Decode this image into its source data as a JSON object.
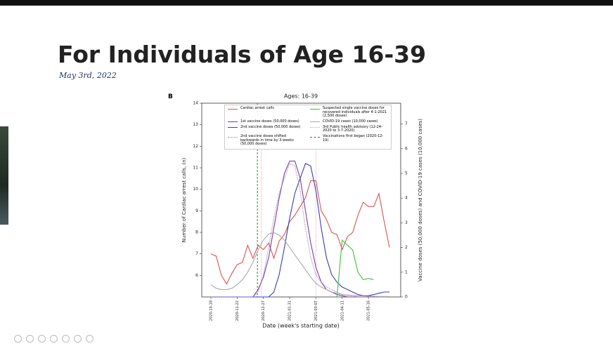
{
  "slide": {
    "title": "For Individuals of Age 16-39",
    "date": "May 3rd, 2022",
    "panel_label": "B"
  },
  "chart_data": {
    "type": "line",
    "title": "Ages: 16-39",
    "x_label": "Date (week's starting date)",
    "y_label": "Number of Cardiac arrest calls, (n)",
    "y2_label": "Vaccine doses (50,000 doses) and COVID-19 cases (10,000 cases)",
    "categories": [
      "2020-10-18",
      null,
      null,
      null,
      null,
      "2020-11-22",
      null,
      null,
      null,
      null,
      "2020-12-27",
      null,
      null,
      null,
      null,
      "2021-01-31",
      null,
      null,
      null,
      null,
      "2021-03-07",
      null,
      null,
      null,
      null,
      "2021-04-11",
      null,
      null,
      null,
      null,
      "2021-05-16",
      null,
      null,
      null,
      null
    ],
    "ylim": [
      5,
      14
    ],
    "yticks": [
      6,
      7,
      8,
      9,
      10,
      11,
      12,
      13,
      14
    ],
    "y2lim": [
      0,
      7.84
    ],
    "y2ticks": [
      0,
      1,
      2,
      3,
      4,
      5,
      6,
      7
    ],
    "series": [
      {
        "name": "Cardiac arrest calls",
        "color": "#d9534f",
        "dash": "solid",
        "axis": "y",
        "values": [
          7.0,
          6.9,
          6.0,
          5.6,
          6.1,
          6.5,
          6.6,
          7.4,
          6.8,
          7.4,
          7.2,
          7.5,
          6.8,
          7.6,
          7.9,
          8.5,
          8.8,
          9.2,
          9.6,
          10.4,
          10.4,
          9.0,
          8.6,
          8.0,
          7.9,
          7.2,
          7.8,
          8.0,
          8.8,
          9.4,
          9.2,
          9.2,
          9.8,
          8.5,
          7.3
        ]
      },
      {
        "name": "1st vaccine doses (50,000 doses)",
        "color": "#7b3f9e",
        "dash": "solid",
        "axis": "y2",
        "values": [
          0,
          0,
          0,
          0,
          0,
          0,
          0,
          0,
          0,
          0.3,
          0.8,
          1.6,
          2.8,
          4.0,
          5.0,
          5.5,
          5.5,
          4.8,
          3.5,
          2.2,
          1.2,
          0.6,
          0.3,
          0.2,
          0.1,
          0.05,
          0,
          0,
          0,
          0,
          0,
          0,
          0,
          0,
          0
        ]
      },
      {
        "name": "2nd vaccine doses (50,000 doses)",
        "color": "#3a3ab8",
        "dash": "solid",
        "axis": "y2",
        "values": [
          0,
          0,
          0,
          0,
          0,
          0,
          0,
          0,
          0,
          0,
          0,
          0,
          0.2,
          0.9,
          2.0,
          3.2,
          4.2,
          4.8,
          5.4,
          5.3,
          4.3,
          2.8,
          1.6,
          0.9,
          0.6,
          0.4,
          0.3,
          0.2,
          0.1,
          0.05,
          0.05,
          0.1,
          0.15,
          0.2,
          0.2
        ]
      },
      {
        "name": "2nd vaccine doses shifted backwards in time by 3-weeks (50,000 doses)",
        "color": "#9a7fb8",
        "dash": "dotted",
        "axis": "y2",
        "values": [
          0,
          0,
          0,
          0,
          0,
          0,
          0,
          0,
          0,
          0.2,
          0.9,
          2.0,
          3.2,
          4.2,
          4.8,
          5.4,
          5.3,
          4.3,
          2.8,
          1.6,
          0.9,
          0.6,
          0.4,
          0.3,
          0.2,
          0.1,
          0.05,
          0.05,
          0,
          0,
          0,
          0,
          0,
          0,
          0
        ]
      },
      {
        "name": "Suspected single vaccine doses for recovered individuals after 4-1-2021 (2,500 doses)",
        "color": "#3fbf3f",
        "dash": "solid",
        "axis": "y2",
        "values": [
          null,
          null,
          null,
          null,
          null,
          null,
          null,
          null,
          null,
          null,
          null,
          null,
          null,
          null,
          null,
          null,
          null,
          null,
          null,
          null,
          null,
          null,
          null,
          null,
          0.0,
          2.3,
          2.1,
          1.9,
          1.0,
          0.7,
          0.75,
          0.7,
          null,
          null,
          null
        ]
      },
      {
        "name": "COVID-19 cases (10,000 cases)",
        "color": "#a9a9a9",
        "dash": "solid",
        "axis": "y2",
        "values": [
          0.5,
          0.35,
          0.3,
          0.3,
          0.35,
          0.5,
          0.7,
          1.0,
          1.4,
          1.9,
          2.3,
          2.55,
          2.6,
          2.5,
          2.3,
          2.0,
          1.7,
          1.4,
          1.1,
          0.8,
          0.55,
          0.4,
          0.3,
          0.2,
          0.15,
          0.1,
          0.08,
          0.06,
          0.05,
          0.04,
          0.03,
          0.03,
          0.02,
          0.02,
          0.02
        ]
      }
    ],
    "vlines": [
      {
        "label": "3rd Public health advisory (12-24-2020 to 3-7-2020)",
        "x": [
          "2020-12-24",
          "2021-03-07"
        ],
        "color": "#e6a0b8",
        "dash": "dotted"
      },
      {
        "label": "Vaccinations first began (2020-12-19)",
        "x": [
          "2020-12-19"
        ],
        "color": "#2a8a2a",
        "dash": "dashed"
      }
    ]
  }
}
